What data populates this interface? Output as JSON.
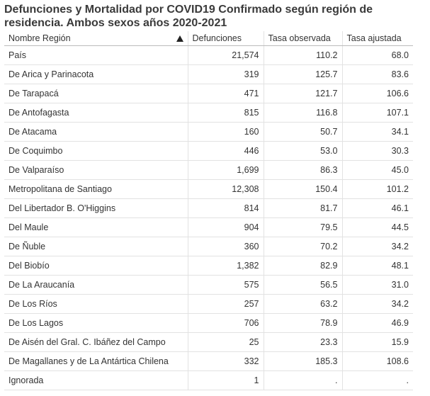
{
  "header": {
    "title": "Defunciones y Mortalidad por COVID19 Confirmado según región de residencia. Ambos sexos años 2020-2021"
  },
  "table": {
    "columns": [
      "Nombre Región",
      "Defunciones",
      "Tasa observada",
      "Tasa ajustada"
    ],
    "rows": [
      [
        "País",
        "21,574",
        "110.2",
        "68.0"
      ],
      [
        "De Arica y Parinacota",
        "319",
        "125.7",
        "83.6"
      ],
      [
        "De Tarapacá",
        "471",
        "121.7",
        "106.6"
      ],
      [
        "De Antofagasta",
        "815",
        "116.8",
        "107.1"
      ],
      [
        "De Atacama",
        "160",
        "50.7",
        "34.1"
      ],
      [
        "De Coquimbo",
        "446",
        "53.0",
        "30.3"
      ],
      [
        "De Valparaíso",
        "1,699",
        "86.3",
        "45.0"
      ],
      [
        "Metropolitana de Santiago",
        "12,308",
        "150.4",
        "101.2"
      ],
      [
        "Del Libertador B. O'Higgins",
        "814",
        "81.7",
        "46.1"
      ],
      [
        "Del Maule",
        "904",
        "79.5",
        "44.5"
      ],
      [
        "De Ñuble",
        "360",
        "70.2",
        "34.2"
      ],
      [
        "Del Biobío",
        "1,382",
        "82.9",
        "48.1"
      ],
      [
        "De La Araucanía",
        "575",
        "56.5",
        "31.0"
      ],
      [
        "De Los Ríos",
        "257",
        "63.2",
        "34.2"
      ],
      [
        "De Los Lagos",
        "706",
        "78.9",
        "46.9"
      ],
      [
        "De Aisén del Gral. C. Ibáñez del Campo",
        "25",
        "23.3",
        "15.9"
      ],
      [
        "De Magallanes y de La Antártica Chilena",
        "332",
        "185.3",
        "108.6"
      ],
      [
        "Ignorada",
        "1",
        ".",
        "."
      ]
    ]
  }
}
